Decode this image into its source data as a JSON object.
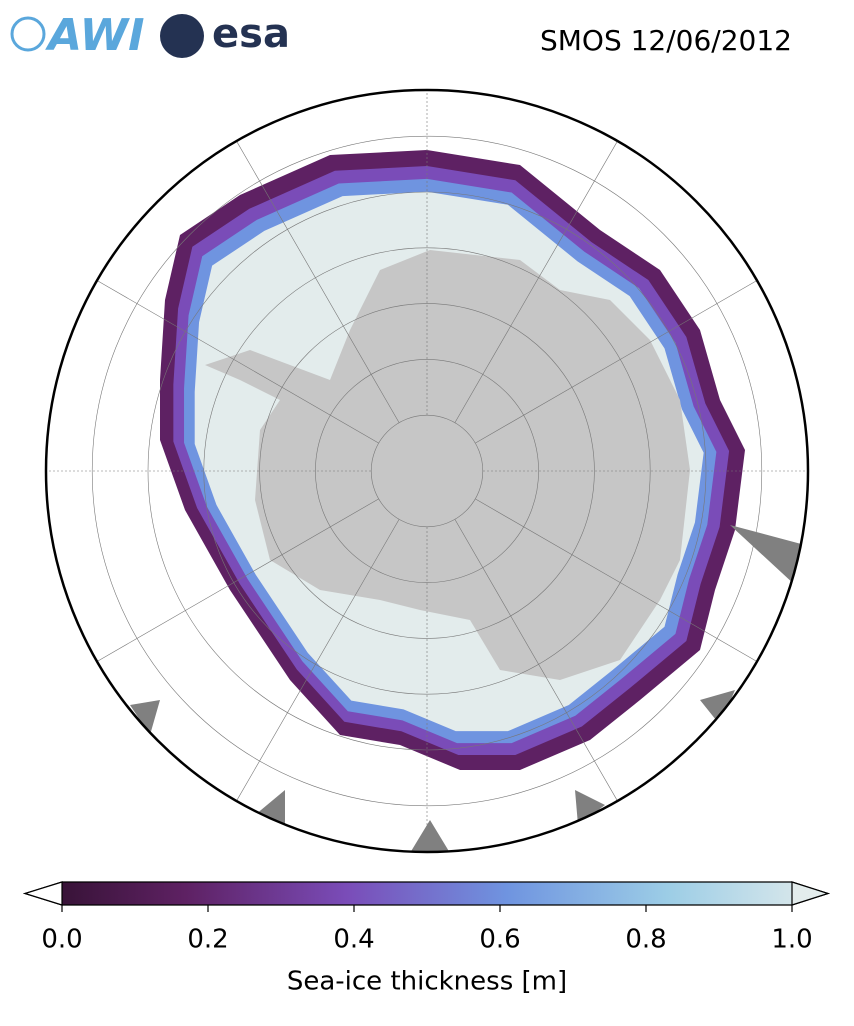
{
  "header": {
    "logos": [
      "AWI",
      "esa"
    ],
    "title": "SMOS 12/06/2012"
  },
  "colorbar": {
    "label": "Sea-ice thickness [m]",
    "lim": [
      0,
      1
    ],
    "ticks": [
      {
        "value": 0,
        "label": "0.0"
      },
      {
        "value": 0.2,
        "label": "0.2"
      },
      {
        "value": 0.4,
        "label": "0.4"
      },
      {
        "value": 0.6,
        "label": "0.6"
      },
      {
        "value": 0.8,
        "label": "0.8"
      },
      {
        "value": 1,
        "label": "1.0"
      }
    ],
    "colors": [
      "#2d0f2b",
      "#5e2163",
      "#7a4cb8",
      "#6f94e0",
      "#9ccde6",
      "#e3ecec"
    ]
  }
}
